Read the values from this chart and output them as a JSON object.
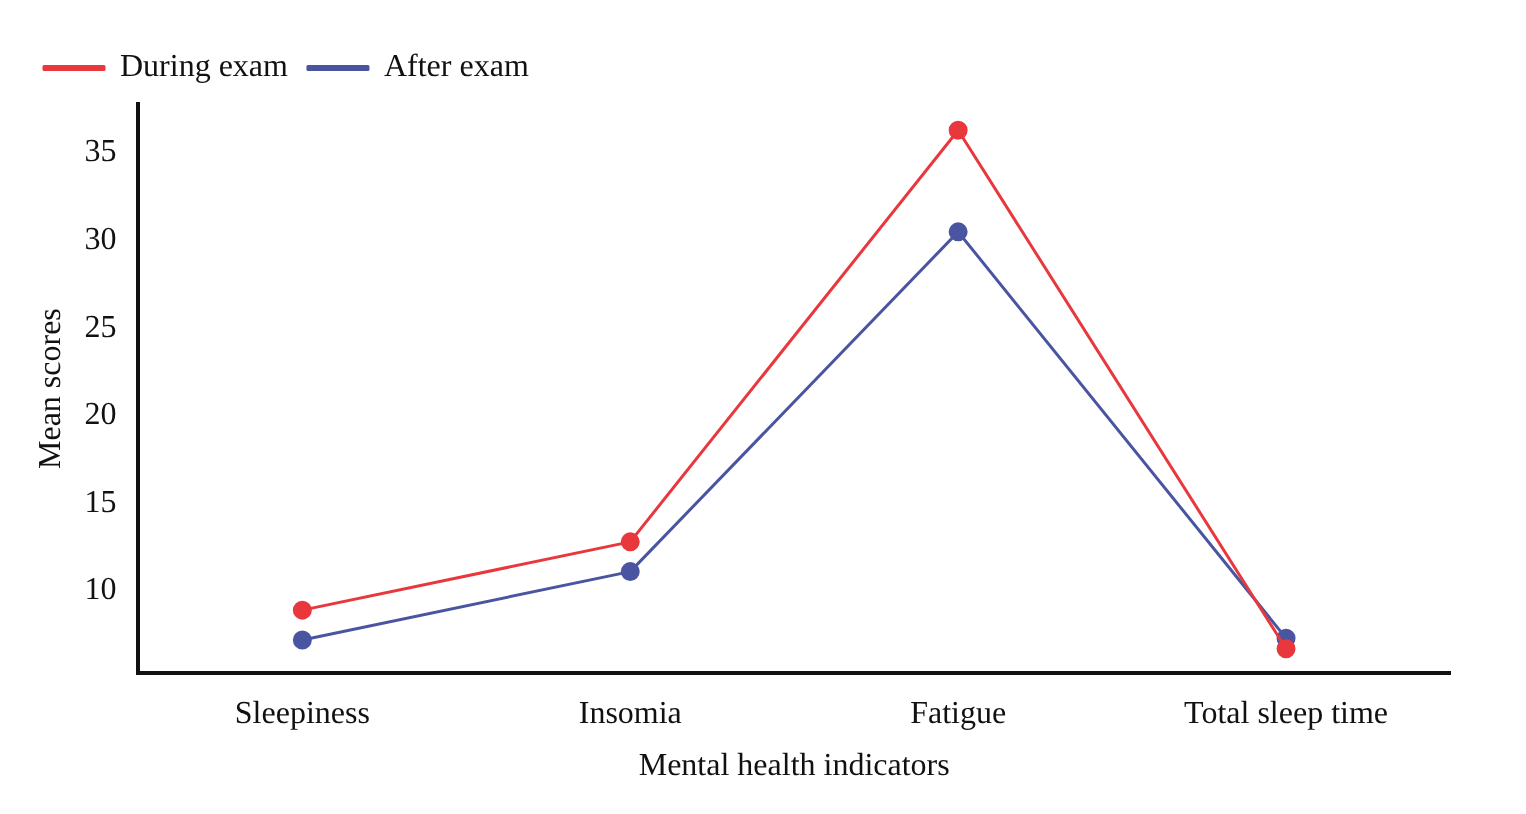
{
  "chart_data": {
    "type": "line",
    "xlabel": "Mental health indicators",
    "ylabel": "Mean scores",
    "categories": [
      "Sleepiness",
      "Insomia",
      "Fatigue",
      "Total sleep time"
    ],
    "series": [
      {
        "name": "During exam",
        "color": "#e8383d",
        "values": [
          8.9,
          12.8,
          36.3,
          6.7
        ]
      },
      {
        "name": "After exam",
        "color": "#4a55a2",
        "values": [
          7.2,
          11.1,
          30.5,
          7.3
        ]
      }
    ],
    "ylim": [
      5.3,
      37.8
    ],
    "yticks": [
      10,
      15,
      20,
      25,
      30,
      35
    ],
    "grid": false,
    "legend": "top left",
    "marker": "circle",
    "line_style": "solid"
  }
}
